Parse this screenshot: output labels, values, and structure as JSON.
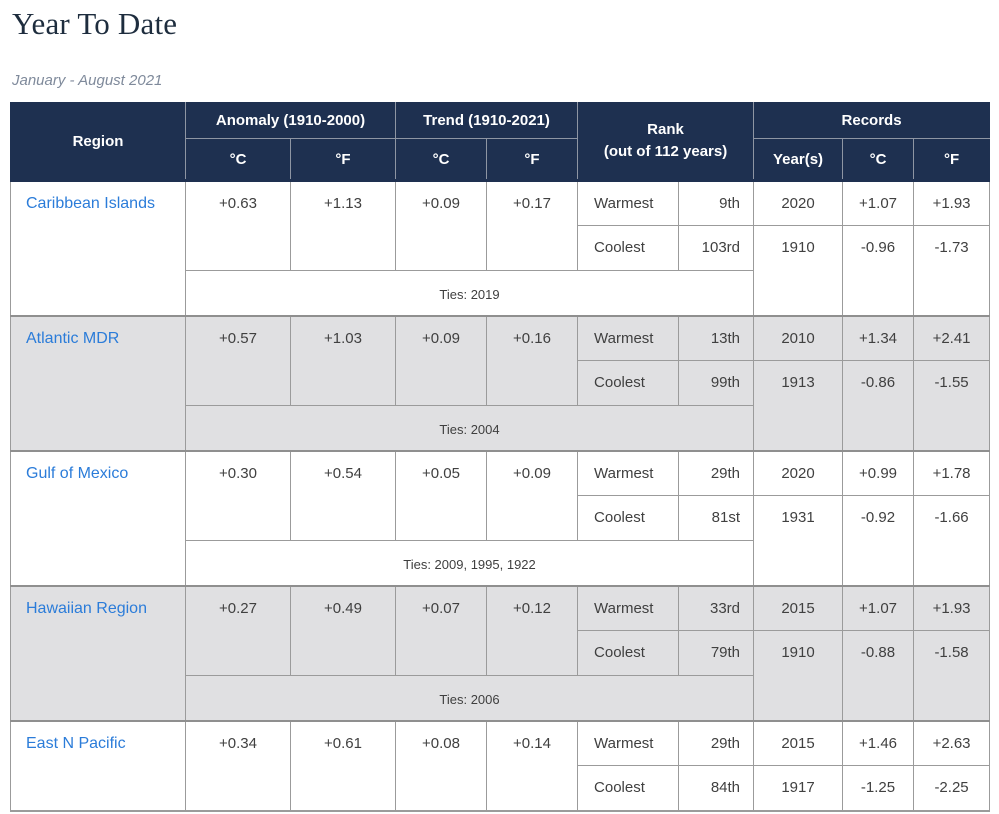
{
  "page": {
    "title": "Year To Date",
    "subtitle": "January - August 2021"
  },
  "colors": {
    "header_bg": "#1e3050",
    "header_text": "#ffffff",
    "alt_row_bg": "#e0e0e2",
    "border": "#9b9b9b",
    "region_link": "#2b7cd9",
    "title_text": "#1e2d3e",
    "subtitle_text": "#7f8a9b"
  },
  "table": {
    "headers": {
      "region": "Region",
      "anomaly": "Anomaly (1910-2000)",
      "trend": "Trend (1910-2021)",
      "rank_line1": "Rank",
      "rank_line2": "(out of 112 years)",
      "records": "Records",
      "deg_c": "°C",
      "deg_f": "°F",
      "years": "Year(s)"
    },
    "rows": [
      {
        "region": "Caribbean Islands",
        "anomaly_c": "+0.63",
        "anomaly_f": "+1.13",
        "trend_c": "+0.09",
        "trend_f": "+0.17",
        "warmest_label": "Warmest",
        "warmest_rank": "9th",
        "warmest_year": "2020",
        "warmest_c": "+1.07",
        "warmest_f": "+1.93",
        "coolest_label": "Coolest",
        "coolest_rank": "103rd",
        "coolest_year": "1910",
        "coolest_c": "-0.96",
        "coolest_f": "-1.73",
        "ties": "Ties: 2019"
      },
      {
        "region": "Atlantic MDR",
        "anomaly_c": "+0.57",
        "anomaly_f": "+1.03",
        "trend_c": "+0.09",
        "trend_f": "+0.16",
        "warmest_label": "Warmest",
        "warmest_rank": "13th",
        "warmest_year": "2010",
        "warmest_c": "+1.34",
        "warmest_f": "+2.41",
        "coolest_label": "Coolest",
        "coolest_rank": "99th",
        "coolest_year": "1913",
        "coolest_c": "-0.86",
        "coolest_f": "-1.55",
        "ties": "Ties: 2004"
      },
      {
        "region": "Gulf of Mexico",
        "anomaly_c": "+0.30",
        "anomaly_f": "+0.54",
        "trend_c": "+0.05",
        "trend_f": "+0.09",
        "warmest_label": "Warmest",
        "warmest_rank": "29th",
        "warmest_year": "2020",
        "warmest_c": "+0.99",
        "warmest_f": "+1.78",
        "coolest_label": "Coolest",
        "coolest_rank": "81st",
        "coolest_year": "1931",
        "coolest_c": "-0.92",
        "coolest_f": "-1.66",
        "ties": "Ties: 2009, 1995, 1922"
      },
      {
        "region": "Hawaiian Region",
        "anomaly_c": "+0.27",
        "anomaly_f": "+0.49",
        "trend_c": "+0.07",
        "trend_f": "+0.12",
        "warmest_label": "Warmest",
        "warmest_rank": "33rd",
        "warmest_year": "2015",
        "warmest_c": "+1.07",
        "warmest_f": "+1.93",
        "coolest_label": "Coolest",
        "coolest_rank": "79th",
        "coolest_year": "1910",
        "coolest_c": "-0.88",
        "coolest_f": "-1.58",
        "ties": "Ties: 2006"
      },
      {
        "region": "East N Pacific",
        "anomaly_c": "+0.34",
        "anomaly_f": "+0.61",
        "trend_c": "+0.08",
        "trend_f": "+0.14",
        "warmest_label": "Warmest",
        "warmest_rank": "29th",
        "warmest_year": "2015",
        "warmest_c": "+1.46",
        "warmest_f": "+2.63",
        "coolest_label": "Coolest",
        "coolest_rank": "84th",
        "coolest_year": "1917",
        "coolest_c": "-1.25",
        "coolest_f": "-2.25",
        "ties": null
      }
    ]
  }
}
